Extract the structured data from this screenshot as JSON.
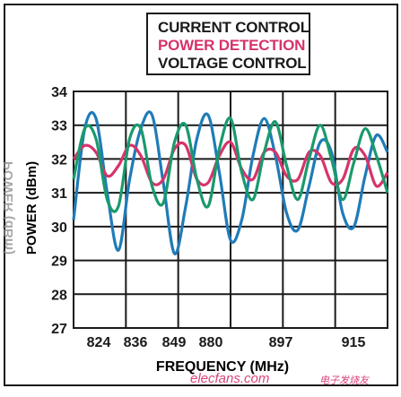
{
  "chart_data": {
    "type": "line",
    "xlabel": "FREQUENCY (MHz)",
    "ylabel": "POWER (dBm)",
    "x_tick_labels": [
      "824",
      "836",
      "849",
      "880",
      "897",
      "915"
    ],
    "y_ticks": [
      27,
      28,
      29,
      30,
      31,
      32,
      33,
      34
    ],
    "ylim": [
      27,
      34
    ],
    "grid": true,
    "legend": {
      "position": "top",
      "entries": [
        "CURRENT CONTROL",
        "POWER DETECTION",
        "VOLTAGE CONTROL"
      ]
    },
    "series": [
      {
        "name": "CURRENT CONTROL",
        "color": "#1f7bb8",
        "values": [
          30.2,
          32.9,
          33.2,
          31.0,
          29.3,
          31.4,
          32.9,
          33.3,
          31.3,
          29.2,
          30.6,
          32.6,
          33.3,
          31.6,
          29.6,
          30.2,
          32.1,
          33.2,
          32.1,
          30.4,
          29.9,
          31.2,
          32.5,
          32.2,
          30.4,
          30.0,
          31.5,
          32.7,
          32.2
        ]
      },
      {
        "name": "POWER DETECTION",
        "color": "#d6336c",
        "values": [
          32.0,
          32.4,
          32.2,
          31.5,
          31.8,
          32.4,
          32.1,
          31.3,
          31.4,
          32.3,
          32.4,
          31.4,
          31.3,
          32.1,
          32.5,
          31.7,
          31.4,
          32.2,
          32.2,
          31.5,
          31.4,
          32.2,
          32.1,
          31.3,
          31.4,
          32.3,
          32.1,
          31.2,
          31.6
        ]
      },
      {
        "name": "VOLTAGE CONTROL",
        "color": "#1a9a6c",
        "values": [
          31.4,
          32.9,
          32.6,
          30.8,
          30.6,
          32.6,
          32.9,
          31.2,
          30.7,
          32.5,
          33.0,
          31.4,
          30.6,
          32.3,
          33.2,
          31.6,
          30.8,
          32.2,
          33.1,
          31.8,
          30.8,
          32.0,
          33.0,
          32.0,
          30.8,
          31.9,
          32.9,
          32.1,
          31.0
        ]
      }
    ]
  },
  "watermark": {
    "site": "elecfans.com",
    "cn": "电子发烧友"
  }
}
